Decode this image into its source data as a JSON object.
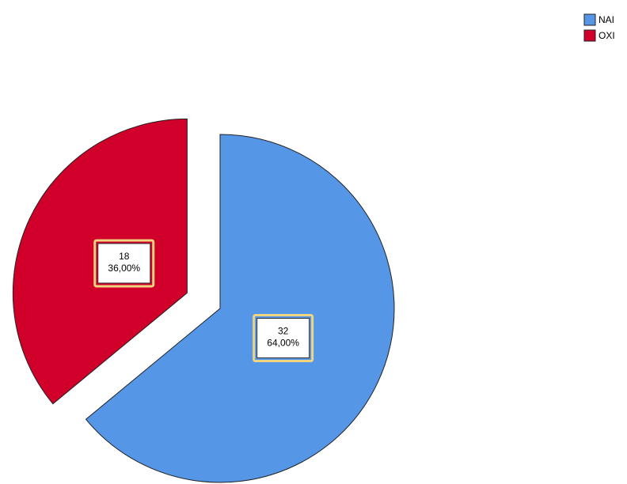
{
  "chart_data": {
    "type": "pie",
    "categories": [
      "NAI",
      "OXI"
    ],
    "values": [
      32,
      18
    ],
    "value_labels": [
      "32",
      "18"
    ],
    "percent_labels": [
      "64,00%",
      "36,00%"
    ],
    "colors": [
      "#5596e6",
      "#d0002a"
    ],
    "legend": "top-right"
  }
}
